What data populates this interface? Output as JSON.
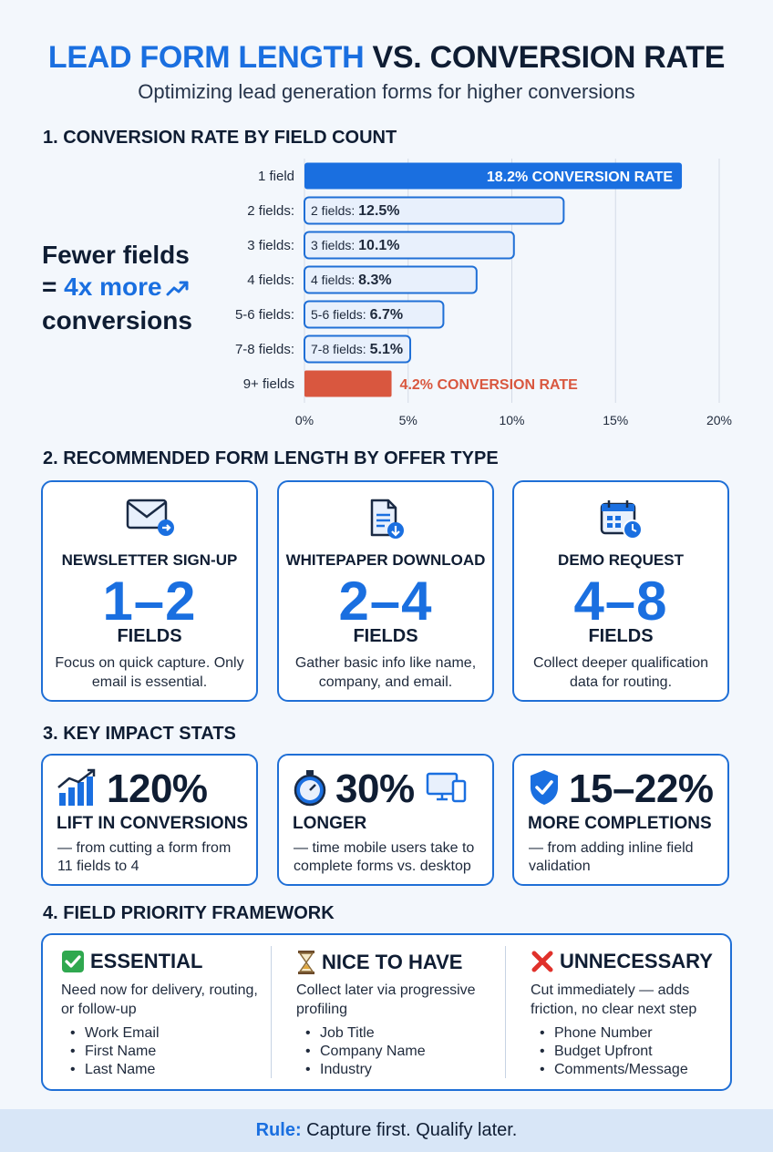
{
  "header": {
    "title_accent": "LEAD FORM LENGTH",
    "title_rest": " VS. CONVERSION RATE",
    "subtitle": "Optimizing lead generation forms for higher conversions"
  },
  "sections": {
    "s1": "1. CONVERSION RATE BY FIELD COUNT",
    "s2": "2. RECOMMENDED FORM LENGTH BY OFFER TYPE",
    "s3": "3. KEY IMPACT STATS",
    "s4": "4. FIELD PRIORITY FRAMEWORK"
  },
  "tagline": {
    "line1": "Fewer fields",
    "line2_prefix": "= ",
    "line2_accent": "4x more",
    "line3": "conversions"
  },
  "chart_data": {
    "type": "bar",
    "orientation": "horizontal",
    "categories": [
      "1 field",
      "2 fields:",
      "3 fields:",
      "4 fields:",
      "5-6 fields:",
      "7-8 fields:",
      "9+ fields"
    ],
    "values": [
      18.2,
      12.5,
      10.1,
      8.3,
      6.7,
      5.1,
      4.2
    ],
    "bar_labels": [
      {
        "text": "18.2% CONVERSION RATE"
      },
      {
        "prefix": "2 fields: ",
        "value": "12.5%"
      },
      {
        "prefix": "3 fields: ",
        "value": "10.1%"
      },
      {
        "prefix": "4 fields: ",
        "value": "8.3%"
      },
      {
        "prefix": "5-6 fields: ",
        "value": "6.7%"
      },
      {
        "prefix": "7-8 fields: ",
        "value": "5.1%"
      },
      {
        "text": "4.2% CONVERSION RATE"
      }
    ],
    "xlim": [
      0,
      20
    ],
    "xticks": [
      "0%",
      "5%",
      "10%",
      "15%",
      "20%"
    ],
    "xtick_values": [
      0,
      5,
      10,
      15,
      20
    ],
    "grid": true,
    "colors": {
      "top": "#1a6fe0",
      "middle_fill": "#e8f0fc",
      "middle_stroke": "#1f6fd6",
      "bottom": "#d9573f"
    }
  },
  "offers": [
    {
      "title": "NEWSLETTER SIGN-UP",
      "range": "1–2",
      "unit": "FIELDS",
      "desc": "Focus on quick capture. Only email is essential.",
      "icon": "envelope-icon"
    },
    {
      "title": "WHITEPAPER DOWNLOAD",
      "range": "2–4",
      "unit": "FIELDS",
      "desc": "Gather basic info like name, company, and email.",
      "icon": "document-download-icon"
    },
    {
      "title": "DEMO REQUEST",
      "range": "4–8",
      "unit": "FIELDS",
      "desc": "Collect deeper qualification data for routing.",
      "icon": "calendar-clock-icon"
    }
  ],
  "stats": [
    {
      "value": "120%",
      "label": "LIFT IN CONVERSIONS",
      "desc": "— from cutting a form from 11 fields to 4",
      "icon": "bar-chart-up-icon"
    },
    {
      "value": "30%",
      "label": "LONGER",
      "desc": "— time mobile users take to complete forms vs. desktop",
      "icon": "stopwatch-icon"
    },
    {
      "value": "15–22%",
      "label": "MORE COMPLETIONS",
      "desc": "— from adding inline field validation",
      "icon": "shield-check-icon"
    }
  ],
  "framework": [
    {
      "heading": "ESSENTIAL",
      "desc": "Need now for delivery, routing, or follow-up",
      "items": [
        "Work Email",
        "First Name",
        "Last Name"
      ],
      "icon": "check-box-icon"
    },
    {
      "heading": "NICE TO HAVE",
      "desc": "Collect later via progressive profiling",
      "items": [
        "Job Title",
        "Company Name",
        "Industry"
      ],
      "icon": "hourglass-icon"
    },
    {
      "heading": "UNNECESSARY",
      "desc": "Cut immediately — adds friction, no clear next step",
      "items": [
        "Phone Number",
        "Budget Upfront",
        "Comments/Message"
      ],
      "icon": "red-cross-icon"
    }
  ],
  "footer": {
    "label": "Rule:",
    "text": " Capture first. Qualify later."
  },
  "colors": {
    "accent": "#1a6fe0",
    "warning": "#d9573f",
    "success": "#2fa84f"
  }
}
